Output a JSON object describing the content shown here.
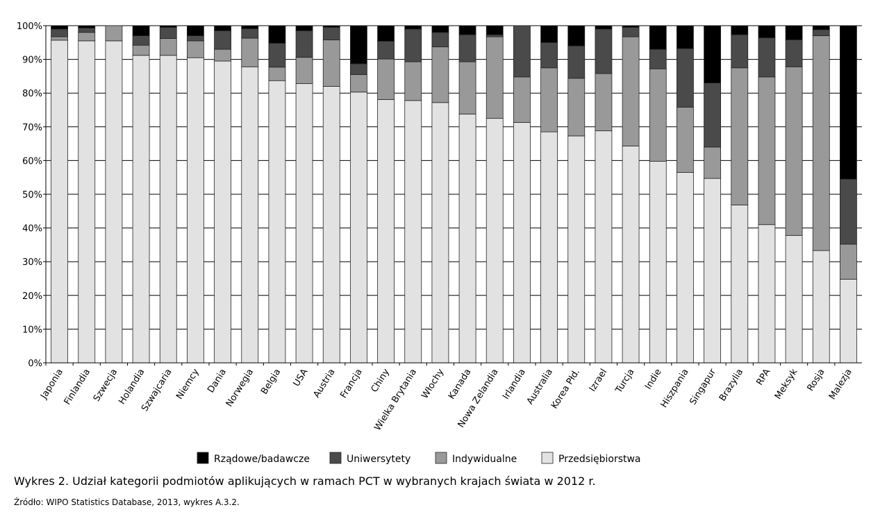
{
  "chart_data": {
    "type": "bar",
    "stacked": true,
    "percent": true,
    "categories": [
      "Japonia",
      "Finlandia",
      "Szwecja",
      "Holandia",
      "Szwajcaria",
      "Niemcy",
      "Dania",
      "Norwegia",
      "Belgia",
      "USA",
      "Austria",
      "Francja",
      "Chiny",
      "Wielka Brytania",
      "Włochy",
      "Kanada",
      "Nowa Zelandia",
      "Irlandia",
      "Australia",
      "Korea Płd.",
      "Izrael",
      "Turcja",
      "Indie",
      "Hiszpania",
      "Singapur",
      "Brazylia",
      "RPA",
      "Meksyk",
      "Rosja",
      "Malezja"
    ],
    "series": [
      {
        "name": "Przedsiębiorstwa",
        "color": "#e2e2e2",
        "values": [
          95.7,
          95.5,
          95.5,
          91.2,
          91.2,
          90.5,
          89.5,
          87.8,
          83.7,
          82.8,
          82.0,
          80.3,
          78.1,
          77.8,
          77.2,
          73.8,
          72.5,
          71.3,
          68.5,
          67.3,
          68.8,
          64.3,
          59.8,
          56.5,
          54.7,
          46.8,
          41.0,
          37.8,
          33.3,
          24.8
        ]
      },
      {
        "name": "Indywidualne",
        "color": "#999999",
        "values": [
          1.0,
          2.5,
          4.5,
          3.0,
          5.0,
          5.0,
          3.5,
          8.5,
          4.0,
          7.8,
          13.8,
          5.2,
          12.0,
          11.5,
          16.5,
          15.5,
          24.2,
          13.5,
          19.0,
          17.1,
          17.0,
          32.4,
          27.4,
          19.3,
          9.3,
          40.7,
          43.8,
          50.0,
          63.7,
          10.4
        ]
      },
      {
        "name": "Uniwersytety",
        "color": "#4a4a4a",
        "values": [
          2.3,
          1.3,
          0.0,
          2.8,
          3.3,
          1.5,
          5.5,
          2.8,
          7.1,
          7.9,
          3.7,
          3.2,
          5.3,
          9.7,
          4.3,
          8.0,
          0.6,
          15.2,
          7.5,
          9.6,
          13.2,
          2.8,
          5.8,
          17.4,
          19.0,
          9.8,
          11.6,
          8.0,
          1.8,
          19.3
        ]
      },
      {
        "name": "Rządowe/badawcze",
        "color": "#000000",
        "values": [
          1.0,
          0.7,
          0.0,
          3.0,
          0.5,
          3.0,
          1.5,
          0.9,
          5.2,
          1.5,
          0.5,
          11.3,
          4.6,
          1.0,
          2.0,
          2.7,
          2.7,
          0.0,
          5.0,
          6.0,
          1.0,
          0.5,
          7.0,
          6.8,
          17.0,
          2.7,
          3.6,
          4.2,
          1.2,
          45.5
        ]
      }
    ],
    "ylim": [
      0,
      100
    ],
    "yticks": [
      "0%",
      "10%",
      "20%",
      "30%",
      "40%",
      "50%",
      "60%",
      "70%",
      "80%",
      "90%",
      "100%"
    ],
    "legend_order": [
      "Rządowe/badawcze",
      "Uniwersytety",
      "Indywidualne",
      "Przedsiębiorstwa"
    ],
    "legend_position": "bottom",
    "grid": true
  },
  "caption": "Wykres 2. Udział kategorii podmiotów aplikujących w ramach PCT w wybranych krajach świata w 2012 r.",
  "source": "Źródło: WIPO Statistics Database, 2013, wykres A.3.2."
}
